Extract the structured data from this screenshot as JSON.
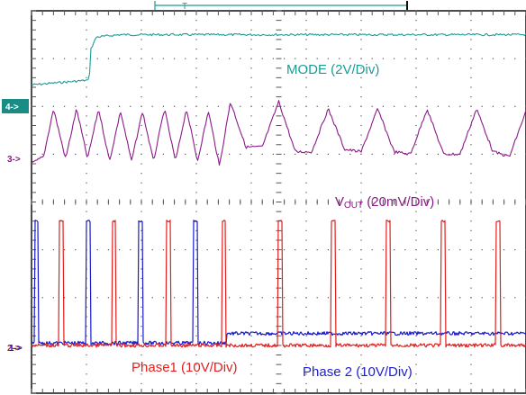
{
  "chart_data": {
    "type": "line",
    "title": "",
    "xlabel": "",
    "ylabel": "",
    "grid": true,
    "x_divisions": 9,
    "y_divisions": 8,
    "trigger_marker": "T",
    "channel_markers": [
      {
        "label": "4->",
        "channel": 4,
        "color": "#1a8c86",
        "style": "box"
      },
      {
        "label": "3->",
        "channel": 3,
        "color": "#8b1a89",
        "style": "text"
      },
      {
        "label": "2->",
        "channel": 2,
        "color": "#cc2020",
        "style": "text"
      },
      {
        "label": "1->",
        "channel": 1,
        "color": "#1a1acc",
        "style": "text"
      }
    ],
    "annotations": [
      {
        "key": "mode",
        "text": "MODE (2V/Div)",
        "color": "#1a9c96"
      },
      {
        "key": "vout",
        "main": "V",
        "sub": "OUT",
        "rest": " (20mV/Div)",
        "color": "#8b1a89"
      },
      {
        "key": "phase1",
        "text": "Phase1 (10V/Div)",
        "color": "#e02020"
      },
      {
        "key": "phase2",
        "text": "Phase 2 (10V/Div)",
        "color": "#2020d0"
      }
    ],
    "series": [
      {
        "name": "MODE (2V/Div)",
        "color": "#1a9c96",
        "x": [
          0.0,
          1.05,
          1.08,
          1.18,
          1.6,
          9.0
        ],
        "y": [
          6.45,
          6.55,
          7.2,
          7.45,
          7.5,
          7.5
        ]
      },
      {
        "name": "V_OUT (20mV/Div)",
        "color": "#8b1a89",
        "x": [
          0.0,
          0.22,
          0.4,
          0.62,
          0.82,
          1.02,
          1.22,
          1.42,
          1.62,
          1.82,
          2.02,
          2.22,
          2.42,
          2.62,
          2.82,
          3.02,
          3.22,
          3.42,
          3.62,
          3.9,
          4.2,
          4.5,
          4.8,
          5.1,
          5.4,
          5.7,
          6.0,
          6.3,
          6.6,
          6.9,
          7.2,
          7.5,
          7.8,
          8.1,
          8.4,
          8.7,
          9.0
        ],
        "y": [
          4.8,
          4.95,
          5.95,
          4.9,
          5.95,
          4.9,
          5.95,
          4.85,
          5.9,
          4.85,
          5.9,
          4.85,
          5.95,
          4.85,
          5.95,
          4.85,
          5.9,
          4.75,
          6.1,
          5.15,
          5.15,
          6.1,
          5.05,
          5.05,
          5.95,
          5.1,
          5.05,
          5.95,
          5.05,
          5.0,
          5.95,
          5.0,
          5.0,
          5.95,
          5.05,
          4.95,
          5.9
        ]
      },
      {
        "name": "Phase1 (10V/Div)",
        "color": "#e02020",
        "pulses_x": [
          0.5,
          1.46,
          2.45,
          3.46,
          4.48,
          5.45,
          6.45,
          7.45,
          8.45
        ],
        "pulse_width": 0.08,
        "low": 1.0,
        "high": 3.6
      },
      {
        "name": "Phase 2 (10V/Div)",
        "color": "#1a1acc",
        "pulses_x": [
          0.05,
          1.0,
          1.95,
          2.95
        ],
        "pulse_width": 0.08,
        "low": 1.05,
        "high": 3.6,
        "after_level": 1.25,
        "after_start": 3.55
      }
    ]
  }
}
